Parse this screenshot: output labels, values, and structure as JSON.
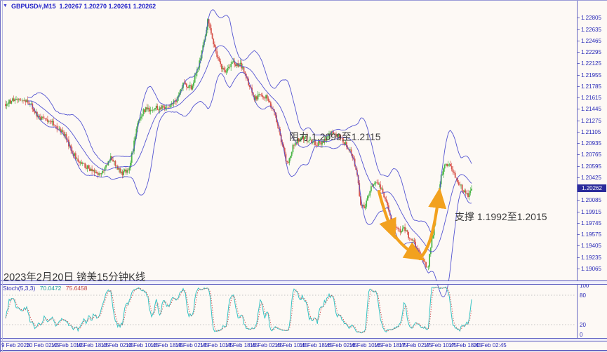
{
  "window": {
    "symbol_title": "GBPUSD#,M15",
    "ohlc_title": "1.20267 1.20270 1.20261 1.20262",
    "dropdown_icon": "▼"
  },
  "price_axis": {
    "labels": [
      "1.22805",
      "1.22635",
      "1.22465",
      "1.22295",
      "1.22125",
      "1.21955",
      "1.21785",
      "1.21615",
      "1.21445",
      "1.21275",
      "1.21105",
      "1.20935",
      "1.20765",
      "1.20595",
      "1.20425",
      "1.20085",
      "1.19915",
      "1.19745",
      "1.19575",
      "1.19405",
      "1.19235",
      "1.19065"
    ],
    "current_price": "1.20262"
  },
  "time_axis": {
    "labels": [
      "9 Feb 2023",
      "10 Feb 02:45",
      "10 Feb 10:45",
      "10 Feb 18:45",
      "13 Feb 02:45",
      "13 Feb 10:45",
      "13 Feb 18:45",
      "14 Feb 02:45",
      "14 Feb 10:45",
      "14 Feb 18:45",
      "15 Feb 02:45",
      "15 Feb 10:45",
      "15 Feb 18:45",
      "16 Feb 02:45",
      "16 Feb 10:45",
      "16 Feb 18:45",
      "17 Feb 02:45",
      "17 Feb 10:45",
      "17 Feb 18:45",
      "20 Feb 02:45"
    ]
  },
  "indicator": {
    "name": "Stoch(5,3,3)",
    "k_value": "70.0472",
    "d_value": "75.6458",
    "scale_values": [
      100,
      80,
      20,
      0
    ]
  },
  "annotations": {
    "resistance": "阻力 1.2099至1.2115",
    "support": "支撑 1.1992至1.2015",
    "caption": "2023年2月20日 镑美15分钟K线"
  },
  "colors": {
    "bull": "#4cb648",
    "bear": "#d8564e",
    "band": "#4b4bd0",
    "stoch_k": "#35c3c3",
    "stoch_d": "#cf4a4a",
    "level": "#c4c4c4",
    "arrow": "#f2a11e",
    "axis_text": "#2828b8",
    "badge_bg": "#2b2b9b"
  },
  "chart_data": {
    "type": "candlestick",
    "symbol": "GBPUSD#",
    "timeframe": "M15",
    "title": "GBPUSD#,M15  1.20267 1.20270 1.20261 1.20262",
    "last_ohlc": {
      "open": 1.20267,
      "high": 1.2027,
      "low": 1.20261,
      "close": 1.20262
    },
    "ylim": [
      1.1888,
      1.2292
    ],
    "bars": 400,
    "x_range_labels": [
      "9 Feb 2023",
      "20 Feb 02:45"
    ],
    "price_anchors": [
      [
        8,
        1.2152
      ],
      [
        22,
        1.2162
      ],
      [
        40,
        1.2157
      ],
      [
        55,
        1.2132
      ],
      [
        72,
        1.2126
      ],
      [
        90,
        1.211
      ],
      [
        103,
        1.2082
      ],
      [
        112,
        1.2063
      ],
      [
        126,
        1.2058
      ],
      [
        140,
        1.2044
      ],
      [
        150,
        1.2058
      ],
      [
        158,
        1.2074
      ],
      [
        166,
        1.2058
      ],
      [
        175,
        1.2048
      ],
      [
        185,
        1.206
      ],
      [
        195,
        1.2118
      ],
      [
        205,
        1.2143
      ],
      [
        222,
        1.2146
      ],
      [
        240,
        1.2148
      ],
      [
        252,
        1.216
      ],
      [
        262,
        1.2184
      ],
      [
        272,
        1.2176
      ],
      [
        282,
        1.2204
      ],
      [
        290,
        1.2242
      ],
      [
        296,
        1.2276
      ],
      [
        302,
        1.225
      ],
      [
        310,
        1.222
      ],
      [
        320,
        1.2198
      ],
      [
        332,
        1.2213
      ],
      [
        344,
        1.221
      ],
      [
        352,
        1.2188
      ],
      [
        362,
        1.2161
      ],
      [
        372,
        1.2166
      ],
      [
        382,
        1.216
      ],
      [
        392,
        1.2138
      ],
      [
        402,
        1.2093
      ],
      [
        410,
        1.206
      ],
      [
        418,
        1.209
      ],
      [
        428,
        1.2103
      ],
      [
        440,
        1.21
      ],
      [
        452,
        1.2093
      ],
      [
        462,
        1.2098
      ],
      [
        472,
        1.211
      ],
      [
        482,
        1.2106
      ],
      [
        492,
        1.2093
      ],
      [
        500,
        1.208
      ],
      [
        508,
        1.2055
      ],
      [
        514,
        1.2002
      ],
      [
        520,
        1.2
      ],
      [
        528,
        1.2026
      ],
      [
        537,
        1.2036
      ],
      [
        545,
        1.2022
      ],
      [
        552,
        1.1998
      ],
      [
        560,
        1.1975
      ],
      [
        568,
        1.1962
      ],
      [
        576,
        1.1968
      ],
      [
        583,
        1.1952
      ],
      [
        590,
        1.1945
      ],
      [
        597,
        1.193
      ],
      [
        604,
        1.1915
      ],
      [
        610,
        1.191
      ],
      [
        616,
        1.1952
      ],
      [
        622,
        1.1998
      ],
      [
        628,
        1.2042
      ],
      [
        634,
        1.206
      ],
      [
        640,
        1.2064
      ],
      [
        646,
        1.2048
      ],
      [
        652,
        1.2038
      ],
      [
        658,
        1.2026
      ],
      [
        664,
        1.2018
      ],
      [
        668,
        1.2016
      ],
      [
        672,
        1.2026
      ]
    ],
    "overlays": [
      {
        "name": "Bollinger Bands",
        "period": 20,
        "deviation": 2
      }
    ],
    "resistance_zone": [
      1.2099,
      1.2115
    ],
    "support_zone": [
      1.1992,
      1.2015
    ],
    "sub_chart": {
      "type": "line",
      "name": "Stochastic Oscillator",
      "params": [
        5,
        3,
        3
      ],
      "range": [
        0,
        100
      ],
      "levels": [
        80,
        20
      ],
      "last_k": 70.0472,
      "last_d": 75.6458
    }
  }
}
